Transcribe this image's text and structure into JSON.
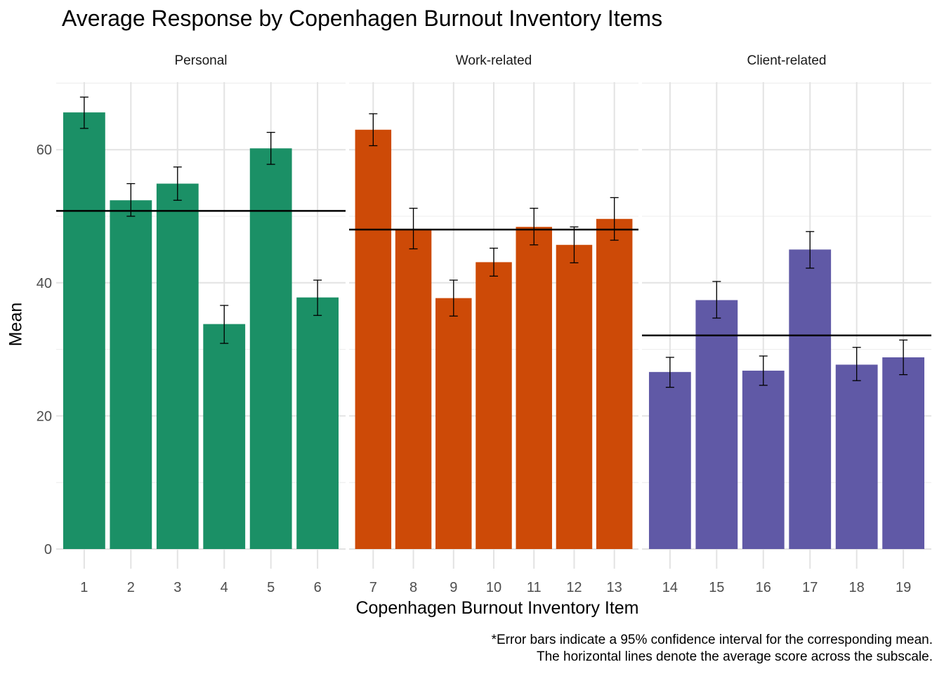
{
  "chart_data": {
    "type": "bar",
    "title": "Average Response by Copenhagen Burnout Inventory Items",
    "xlabel": "Copenhagen Burnout Inventory Item",
    "ylabel": "Mean",
    "ylim": [
      0,
      70
    ],
    "y_ticks": [
      0,
      20,
      40,
      60
    ],
    "grid": true,
    "caption": [
      "*Error bars indicate a 95% confidence interval for the corresponding mean.",
      "The horizontal lines denote the average score across the subscale."
    ],
    "panels": [
      {
        "name": "Personal",
        "color": "#1b9066",
        "categories": [
          "1",
          "2",
          "3",
          "4",
          "5",
          "6"
        ],
        "values": [
          65.6,
          52.4,
          54.9,
          33.8,
          60.2,
          37.8
        ],
        "ci_low": [
          63.2,
          50.0,
          52.4,
          30.9,
          57.8,
          35.1
        ],
        "ci_high": [
          67.9,
          54.9,
          57.4,
          36.6,
          62.6,
          40.4
        ],
        "subscale_mean": 50.8
      },
      {
        "name": "Work-related",
        "color": "#cd4a07",
        "categories": [
          "7",
          "8",
          "9",
          "10",
          "11",
          "12",
          "13"
        ],
        "values": [
          63.0,
          48.1,
          37.7,
          43.1,
          48.4,
          45.7,
          49.6
        ],
        "ci_low": [
          60.6,
          45.1,
          35.0,
          41.0,
          45.7,
          43.0,
          46.4
        ],
        "ci_high": [
          65.4,
          51.2,
          40.4,
          45.2,
          51.2,
          48.4,
          52.8
        ],
        "subscale_mean": 48.0
      },
      {
        "name": "Client-related",
        "color": "#6059a6",
        "categories": [
          "14",
          "15",
          "16",
          "17",
          "18",
          "19"
        ],
        "values": [
          26.6,
          37.4,
          26.8,
          45.0,
          27.7,
          28.8
        ],
        "ci_low": [
          24.3,
          34.7,
          24.6,
          42.2,
          25.3,
          26.2
        ],
        "ci_high": [
          28.8,
          40.2,
          29.0,
          47.7,
          30.3,
          31.4
        ],
        "subscale_mean": 32.1
      }
    ]
  }
}
